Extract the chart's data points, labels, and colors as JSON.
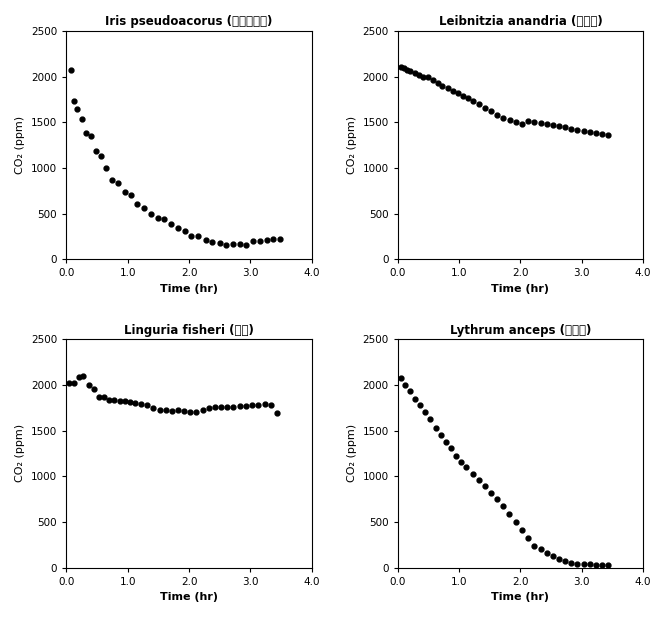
{
  "plots": [
    {
      "title": "Iris pseudoacorus (노랑꿏창포)",
      "xlabel": "Time (hr)",
      "ylabel": "CO₂ (ppm)",
      "xlim": [
        0,
        4.0
      ],
      "ylim": [
        0,
        2500
      ],
      "xticks": [
        0.0,
        1.0,
        2.0,
        3.0,
        4.0
      ],
      "yticks": [
        0,
        500,
        1000,
        1500,
        2000,
        2500
      ],
      "x": [
        0.08,
        0.13,
        0.18,
        0.25,
        0.32,
        0.4,
        0.48,
        0.57,
        0.65,
        0.75,
        0.85,
        0.95,
        1.05,
        1.15,
        1.27,
        1.38,
        1.5,
        1.6,
        1.7,
        1.82,
        1.93,
        2.03,
        2.15,
        2.27,
        2.38,
        2.5,
        2.6,
        2.72,
        2.83,
        2.93,
        3.05,
        3.15,
        3.27,
        3.37,
        3.48
      ],
      "y": [
        2070,
        1730,
        1650,
        1540,
        1380,
        1350,
        1190,
        1130,
        1000,
        870,
        840,
        740,
        700,
        600,
        565,
        500,
        450,
        440,
        390,
        340,
        310,
        260,
        250,
        210,
        190,
        175,
        155,
        170,
        165,
        160,
        195,
        205,
        215,
        220,
        220
      ]
    },
    {
      "title": "Leibnitzia anandria (쇜나물)",
      "xlabel": "Time (hr)",
      "ylabel": "CO₂ (ppm)",
      "xlim": [
        0,
        4.0
      ],
      "ylim": [
        0,
        2500
      ],
      "xticks": [
        0.0,
        1.0,
        2.0,
        3.0,
        4.0
      ],
      "yticks": [
        0,
        500,
        1000,
        1500,
        2000,
        2500
      ],
      "x": [
        0.05,
        0.1,
        0.15,
        0.2,
        0.28,
        0.35,
        0.42,
        0.5,
        0.58,
        0.65,
        0.73,
        0.82,
        0.9,
        0.98,
        1.07,
        1.15,
        1.23,
        1.32,
        1.42,
        1.52,
        1.62,
        1.72,
        1.83,
        1.93,
        2.03,
        2.13,
        2.23,
        2.33,
        2.43,
        2.53,
        2.63,
        2.73,
        2.83,
        2.93,
        3.03,
        3.13,
        3.23,
        3.33,
        3.43
      ],
      "y": [
        2100,
        2090,
        2070,
        2060,
        2040,
        2020,
        2000,
        1990,
        1960,
        1930,
        1900,
        1870,
        1840,
        1820,
        1790,
        1760,
        1730,
        1700,
        1660,
        1620,
        1580,
        1550,
        1520,
        1500,
        1480,
        1510,
        1500,
        1490,
        1480,
        1470,
        1460,
        1450,
        1430,
        1420,
        1400,
        1390,
        1380,
        1370,
        1360
      ]
    },
    {
      "title": "Linguria fisheri (곰취)",
      "xlabel": "Time (hr)",
      "ylabel": "CO₂ (ppm)",
      "xlim": [
        0,
        4.0
      ],
      "ylim": [
        0,
        2500
      ],
      "xticks": [
        0.0,
        1.0,
        2.0,
        3.0,
        4.0
      ],
      "yticks": [
        0,
        500,
        1000,
        1500,
        2000,
        2500
      ],
      "x": [
        0.05,
        0.12,
        0.2,
        0.28,
        0.37,
        0.45,
        0.53,
        0.62,
        0.7,
        0.78,
        0.87,
        0.95,
        1.03,
        1.12,
        1.22,
        1.32,
        1.42,
        1.52,
        1.62,
        1.72,
        1.82,
        1.92,
        2.02,
        2.12,
        2.22,
        2.32,
        2.42,
        2.52,
        2.62,
        2.72,
        2.83,
        2.93,
        3.03,
        3.13,
        3.23,
        3.33,
        3.43
      ],
      "y": [
        2020,
        2020,
        2090,
        2100,
        2000,
        1960,
        1870,
        1870,
        1840,
        1830,
        1820,
        1820,
        1810,
        1800,
        1790,
        1780,
        1750,
        1730,
        1720,
        1710,
        1720,
        1710,
        1700,
        1700,
        1730,
        1750,
        1760,
        1760,
        1760,
        1760,
        1770,
        1770,
        1780,
        1780,
        1790,
        1780,
        1690
      ]
    },
    {
      "title": "Lythrum anceps (부처꾽)",
      "xlabel": "Time (hr)",
      "ylabel": "CO₂ (ppm)",
      "xlim": [
        0,
        4.0
      ],
      "ylim": [
        0,
        2500
      ],
      "xticks": [
        0.0,
        1.0,
        2.0,
        3.0,
        4.0
      ],
      "yticks": [
        0,
        500,
        1000,
        1500,
        2000,
        2500
      ],
      "x": [
        0.05,
        0.12,
        0.2,
        0.28,
        0.37,
        0.45,
        0.53,
        0.62,
        0.7,
        0.78,
        0.87,
        0.95,
        1.03,
        1.12,
        1.22,
        1.32,
        1.42,
        1.52,
        1.62,
        1.72,
        1.82,
        1.93,
        2.03,
        2.13,
        2.23,
        2.33,
        2.43,
        2.53,
        2.63,
        2.73,
        2.83,
        2.93,
        3.03,
        3.13,
        3.23,
        3.33,
        3.43
      ],
      "y": [
        2080,
        2000,
        1930,
        1850,
        1780,
        1700,
        1630,
        1530,
        1450,
        1380,
        1310,
        1220,
        1160,
        1100,
        1030,
        960,
        890,
        820,
        750,
        670,
        590,
        500,
        410,
        320,
        240,
        200,
        160,
        130,
        90,
        70,
        55,
        45,
        40,
        35,
        30,
        30,
        25
      ]
    }
  ],
  "figure_bg": "#ffffff",
  "axes_bg": "#ffffff",
  "marker": "o",
  "marker_size": 3.5,
  "marker_color": "#000000",
  "title_fontsize": 8.5,
  "label_fontsize": 8,
  "tick_fontsize": 7.5
}
